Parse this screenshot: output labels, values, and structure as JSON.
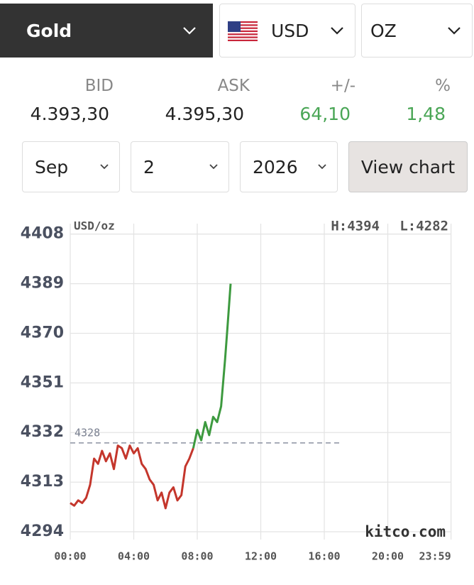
{
  "selectors": {
    "metal": "Gold",
    "currency": "USD",
    "unit": "OZ",
    "month": "Sep",
    "day": "2",
    "year": "2026",
    "button": "View chart"
  },
  "quote": {
    "headers": [
      "BID",
      "ASK",
      "+/-",
      "%"
    ],
    "values": [
      "4.393,30",
      "4.395,30",
      "64,10",
      "1,48"
    ]
  },
  "chart_data": {
    "type": "line",
    "unit_label": "USD/oz",
    "high_label": "H:4394",
    "low_label": "L:4282",
    "watermark": "kitco.com",
    "reference": 4328,
    "xlim": [
      0,
      24
    ],
    "xticks": [
      {
        "value": 0,
        "label": "00:00"
      },
      {
        "value": 4,
        "label": "04:00"
      },
      {
        "value": 8,
        "label": "08:00"
      },
      {
        "value": 12,
        "label": "12:00"
      },
      {
        "value": 16,
        "label": "16:00"
      },
      {
        "value": 20,
        "label": "20:00"
      },
      {
        "value": 23.983,
        "label": "23:59"
      }
    ],
    "ylim": [
      4291,
      4412
    ],
    "yticks": [
      4294,
      4313,
      4332,
      4351,
      4370,
      4389,
      4408
    ],
    "grid": true,
    "series": [
      {
        "color": "#c4362c",
        "x": [
          0,
          0.25,
          0.5,
          0.75,
          1,
          1.25,
          1.5,
          1.75,
          2,
          2.25,
          2.5,
          2.75,
          3,
          3.25,
          3.5,
          3.75,
          4,
          4.25,
          4.5,
          4.75,
          5,
          5.25,
          5.5,
          5.75,
          6,
          6.25,
          6.5,
          6.75,
          7,
          7.25,
          7.5,
          7.75
        ],
        "values": [
          4305,
          4304,
          4306,
          4305,
          4307,
          4312,
          4322,
          4320,
          4325,
          4321,
          4324,
          4318,
          4327,
          4326,
          4322,
          4327,
          4324,
          4326,
          4320,
          4318,
          4314,
          4312,
          4306,
          4309,
          4303,
          4309,
          4311,
          4306,
          4308,
          4319,
          4322,
          4326
        ]
      },
      {
        "color": "#3d9a3f",
        "x": [
          7.75,
          8,
          8.25,
          8.5,
          8.75,
          9,
          9.25,
          9.5,
          9.75,
          9.9,
          10.1
        ],
        "values": [
          4326,
          4333,
          4329,
          4336,
          4331,
          4338,
          4336,
          4342,
          4360,
          4372,
          4389
        ]
      }
    ]
  }
}
